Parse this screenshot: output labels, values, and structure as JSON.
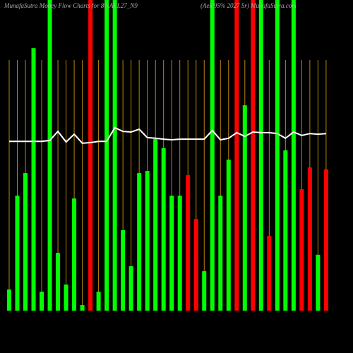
{
  "chart_data": {
    "type": "bar",
    "title": "MunafaSutra Money Flow Charts for 8%AEL27_N9",
    "subtitle": "(Aek 95% 2027 Sr) MunafaSutra.com",
    "categories": [
      null,
      null,
      null,
      null,
      null,
      null,
      null,
      null,
      null,
      null,
      null,
      null,
      null,
      null,
      null,
      null,
      null,
      null,
      null,
      null,
      null,
      null,
      null,
      null,
      null,
      null,
      null,
      null,
      null,
      null,
      null,
      null,
      null,
      null,
      null,
      null,
      null,
      null,
      null,
      null
    ],
    "values": [
      6.8,
      37,
      44.3,
      84.5,
      6.1,
      100,
      18.6,
      8.4,
      36.1,
      1.8,
      100,
      6.1,
      100,
      100,
      25.9,
      14.3,
      44.3,
      45,
      55.2,
      52.3,
      37,
      37,
      43.6,
      29.5,
      12.7,
      100,
      37,
      48.6,
      100,
      66.1,
      100,
      100,
      24.1,
      100,
      51.6,
      100,
      39.1,
      46.1,
      18,
      45.5
    ],
    "colors": [
      "#00ff00",
      "#00ff00",
      "#00ff00",
      "#00ff00",
      "#00ff00",
      "#00ff00",
      "#00ff00",
      "#00ff00",
      "#00ff00",
      "#00ff00",
      "#ff0000",
      "#00ff00",
      "#00ff00",
      "#00ff00",
      "#00ff00",
      "#00ff00",
      "#00ff00",
      "#00ff00",
      "#00ff00",
      "#00ff00",
      "#00ff00",
      "#00ff00",
      "#ff0000",
      "#ff0000",
      "#00ff00",
      "#00ff00",
      "#00ff00",
      "#00ff00",
      "#ff0000",
      "#00ff00",
      "#ff0000",
      "#00ff00",
      "#ff0000",
      "#00ff00",
      "#00ff00",
      "#00ff00",
      "#ff0000",
      "#ff0000",
      "#00ff00",
      "#ff0000"
    ],
    "line_values": [
      54.5,
      54.5,
      54.5,
      54.5,
      54.5,
      54.8,
      57.7,
      54.3,
      56.8,
      53.9,
      54.1,
      54.5,
      54.5,
      58.9,
      57.7,
      57.5,
      58.4,
      55.7,
      55.5,
      55.2,
      55,
      55.2,
      55.2,
      55.2,
      55.2,
      58,
      55,
      55.5,
      57.3,
      56.1,
      57.5,
      57.3,
      57.3,
      57,
      55.5,
      57.5,
      56.4,
      57,
      56.8,
      57
    ],
    "line_color": "#ffffff",
    "grid_color": "#b8860b",
    "ylim": [
      0,
      100
    ]
  }
}
